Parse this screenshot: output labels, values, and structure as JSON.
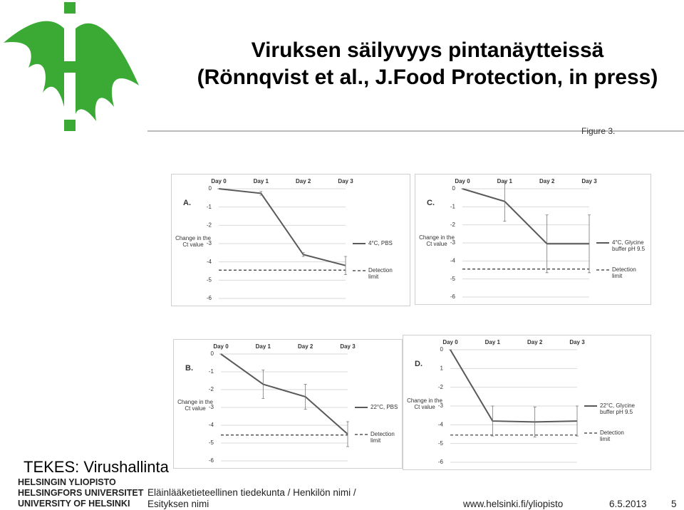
{
  "slide": {
    "title": "Viruksen säilyvyys pintanäytteissä",
    "subtitle": "(Rönnqvist et al., J.Food Protection, in press)",
    "figure_label": "Figure 3.",
    "footer_left": "TEKES: Virushallinta",
    "logo_lines": [
      "HELSINGIN YLIOPISTO",
      "HELSINGFORS UNIVERSITET",
      "UNIVERSITY OF HELSINKI"
    ],
    "faculty": "Eläinlääketieteellinen tiedekunta / Henkilön nimi /",
    "presentation": "Esityksen nimi",
    "url": "www.helsinki.fi/yliopisto",
    "date": "6.5.2013",
    "page": "5"
  },
  "chart_data": [
    {
      "type": "line",
      "panel": "A.",
      "y_label": "Change in the Ct value",
      "categories": [
        "Day 0",
        "Day 1",
        "Day 2",
        "Day 3"
      ],
      "series": [
        {
          "name": "4°C, PBS",
          "color": "#595959",
          "values": [
            0,
            -0.25,
            -3.6,
            -4.2
          ],
          "errors": [
            0,
            0.1,
            0.1,
            0.5
          ]
        }
      ],
      "detection_limit": {
        "name": "Detection limit",
        "value": -4.45
      },
      "ylim": [
        -6,
        0
      ],
      "yticks": [
        0,
        -1,
        -2,
        -3,
        -4,
        -5,
        -6
      ],
      "grid": true
    },
    {
      "type": "line",
      "panel": "C.",
      "y_label": "Change in the Ct value",
      "categories": [
        "Day 0",
        "Day 1",
        "Day 2",
        "Day 3"
      ],
      "series": [
        {
          "name": "4°C, Glycine buffer pH 9.5",
          "color": "#595959",
          "values": [
            0,
            -0.7,
            -3.05,
            -3.05
          ],
          "errors": [
            0,
            1.1,
            1.6,
            1.6
          ]
        }
      ],
      "detection_limit": {
        "name": "Detection limit",
        "value": -4.45
      },
      "ylim": [
        -6,
        0
      ],
      "yticks": [
        0,
        -1,
        -2,
        -3,
        -4,
        -5,
        -6
      ],
      "grid": true
    },
    {
      "type": "line",
      "panel": "B.",
      "y_label": "Change in the Ct value",
      "categories": [
        "Day 0",
        "Day 1",
        "Day 2",
        "Day 3"
      ],
      "series": [
        {
          "name": "22°C, PBS",
          "color": "#595959",
          "values": [
            0,
            -1.7,
            -2.4,
            -4.5
          ],
          "errors": [
            0,
            0.8,
            0.7,
            0.7
          ]
        }
      ],
      "detection_limit": {
        "name": "Detection limit",
        "value": -4.55
      },
      "ylim": [
        -6,
        0
      ],
      "yticks": [
        0,
        -1,
        -2,
        -3,
        -4,
        -5,
        -6
      ],
      "grid": true
    },
    {
      "type": "line",
      "panel": "D.",
      "y_label": "Change in the Ct value",
      "categories": [
        "Day 0",
        "Day 1",
        "Day 2",
        "Day 3"
      ],
      "series": [
        {
          "name": "22°C, Glycine buffer pH 9.5",
          "color": "#595959",
          "values": [
            0,
            -3.8,
            -3.85,
            -3.8
          ],
          "errors": [
            0,
            0.8,
            0.8,
            0.8
          ]
        }
      ],
      "detection_limit": {
        "name": "Detection limit",
        "value": -4.55
      },
      "ylim": [
        -6,
        0
      ],
      "yticks": [
        0,
        {
          "value": -1,
          "label": "1"
        },
        -2,
        -3,
        -4,
        -5,
        -6
      ],
      "grid": true
    }
  ]
}
